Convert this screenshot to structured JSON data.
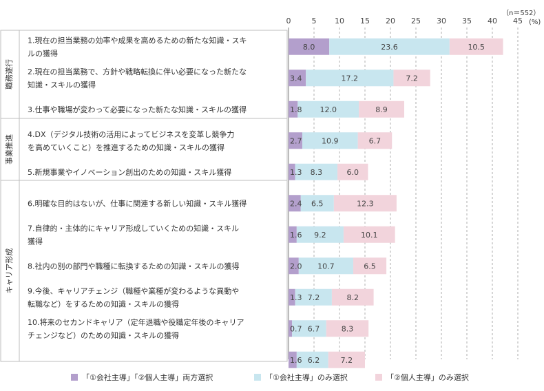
{
  "sample_note": "（n＝552）",
  "unit_note": "(%)",
  "chart_data": {
    "type": "bar",
    "orientation": "horizontal",
    "stacked": true,
    "xlim": [
      0,
      45
    ],
    "x_ticks": [
      0,
      5,
      10,
      15,
      20,
      25,
      30,
      35,
      40,
      45
    ],
    "grid": "vertical dashed",
    "groups": [
      {
        "label": "職務遂行",
        "items": [
          0,
          1,
          2
        ]
      },
      {
        "label": "事業推進",
        "items": [
          3,
          4
        ]
      },
      {
        "label": "キャリア形成",
        "items": [
          5,
          6,
          7,
          8,
          9,
          10
        ]
      }
    ],
    "categories": [
      [
        "1.現在の担当業務の効率や成果を高めるための新たな知識・スキ",
        "ルの獲得"
      ],
      [
        "2.現在の担当業務で、方針や戦略転換に伴い必要になった新たな",
        "知識・スキルの獲得"
      ],
      [
        "3.仕事や職場が変わって必要になった新たな知識・スキルの獲得"
      ],
      [
        "4.DX（デジタル技術の活用によってビジネスを変革し競争力",
        "を高めていくこと）を推進するための知識・スキルの獲得"
      ],
      [
        "5.新規事業やイノベーション創出のための知識・スキル獲得"
      ],
      [
        "6.明確な目的はないが、仕事に関連する新しい知識・スキル獲得"
      ],
      [
        "7.自律的・主体的にキャリア形成していくための知識・スキル",
        "獲得"
      ],
      [
        "8.社内の別の部門や職種に転換するための知識・スキルの獲得"
      ],
      [
        "9.今後、キャリアチェンジ（職種や業種が変わるような異動や",
        "転職など）をするための知識・スキルの獲得"
      ],
      [
        "10.将来のセカンドキャリア（定年退職や役職定年後のキャリア",
        "チェンジなど）のための知識・スキルの獲得"
      ],
      []
    ],
    "series": [
      {
        "name": "「①会社主導」「②個人主導」両方選択",
        "color": "#b39fcc",
        "values": [
          8.0,
          3.4,
          1.8,
          2.7,
          1.3,
          2.4,
          1.6,
          2.0,
          1.3,
          0.7,
          1.6
        ]
      },
      {
        "name": "「①会社主導」のみ選択",
        "color": "#c8e6ef",
        "values": [
          23.6,
          17.2,
          12.0,
          10.9,
          8.3,
          6.5,
          9.2,
          10.7,
          7.2,
          6.7,
          6.2
        ]
      },
      {
        "name": "「②個人主導」のみ選択",
        "color": "#f2d4dc",
        "values": [
          10.5,
          7.2,
          8.9,
          6.7,
          6.0,
          12.3,
          10.1,
          6.5,
          8.2,
          8.3,
          7.2
        ]
      }
    ]
  }
}
